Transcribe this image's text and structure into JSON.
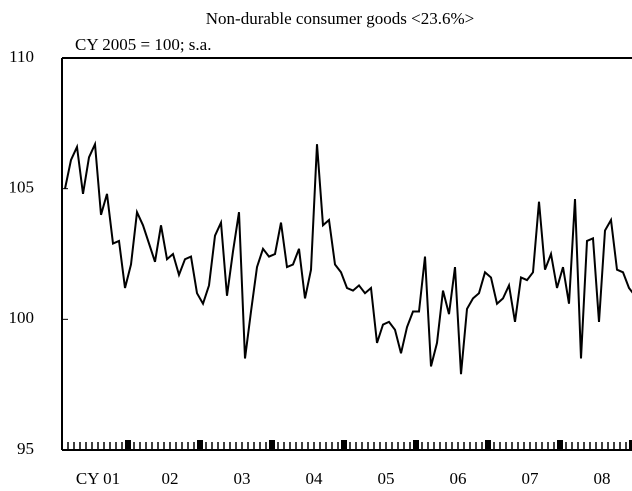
{
  "chart_data": {
    "type": "line",
    "title": "Non-durable consumer goods <23.6%>",
    "subtitle": "CY 2005 = 100; s.a.",
    "xlabels": [
      "CY 01",
      "02",
      "03",
      "04",
      "05",
      "06",
      "07",
      "08"
    ],
    "months_per_label": 12,
    "color": "#000000",
    "values": [
      105.0,
      106.1,
      106.6,
      104.8,
      106.2,
      106.7,
      104.0,
      104.8,
      102.9,
      103.0,
      101.2,
      102.1,
      104.1,
      103.6,
      102.9,
      102.2,
      103.6,
      102.3,
      102.5,
      101.7,
      102.3,
      102.4,
      101.0,
      100.6,
      101.3,
      103.2,
      103.7,
      100.9,
      102.6,
      104.1,
      98.5,
      100.3,
      102.0,
      102.7,
      102.4,
      102.5,
      103.7,
      102.0,
      102.1,
      102.7,
      100.8,
      101.9,
      106.7,
      103.6,
      103.8,
      102.1,
      101.8,
      101.2,
      101.1,
      101.3,
      101.0,
      101.2,
      99.1,
      99.8,
      99.9,
      99.6,
      98.7,
      99.7,
      100.3,
      100.3,
      102.4,
      98.2,
      99.1,
      101.1,
      100.2,
      102.0,
      97.9,
      100.4,
      100.8,
      101.0,
      101.8,
      101.6,
      100.6,
      100.8,
      101.3,
      99.9,
      101.6,
      101.5,
      101.8,
      104.5,
      101.9,
      102.5,
      101.2,
      102.0,
      100.6,
      104.6,
      98.5,
      103.0,
      103.1,
      99.9,
      103.4,
      103.8,
      101.9,
      101.8,
      101.2,
      100.9
    ],
    "ylim": [
      95,
      110
    ],
    "yticks": [
      95,
      100,
      105,
      110
    ],
    "grid": false
  }
}
